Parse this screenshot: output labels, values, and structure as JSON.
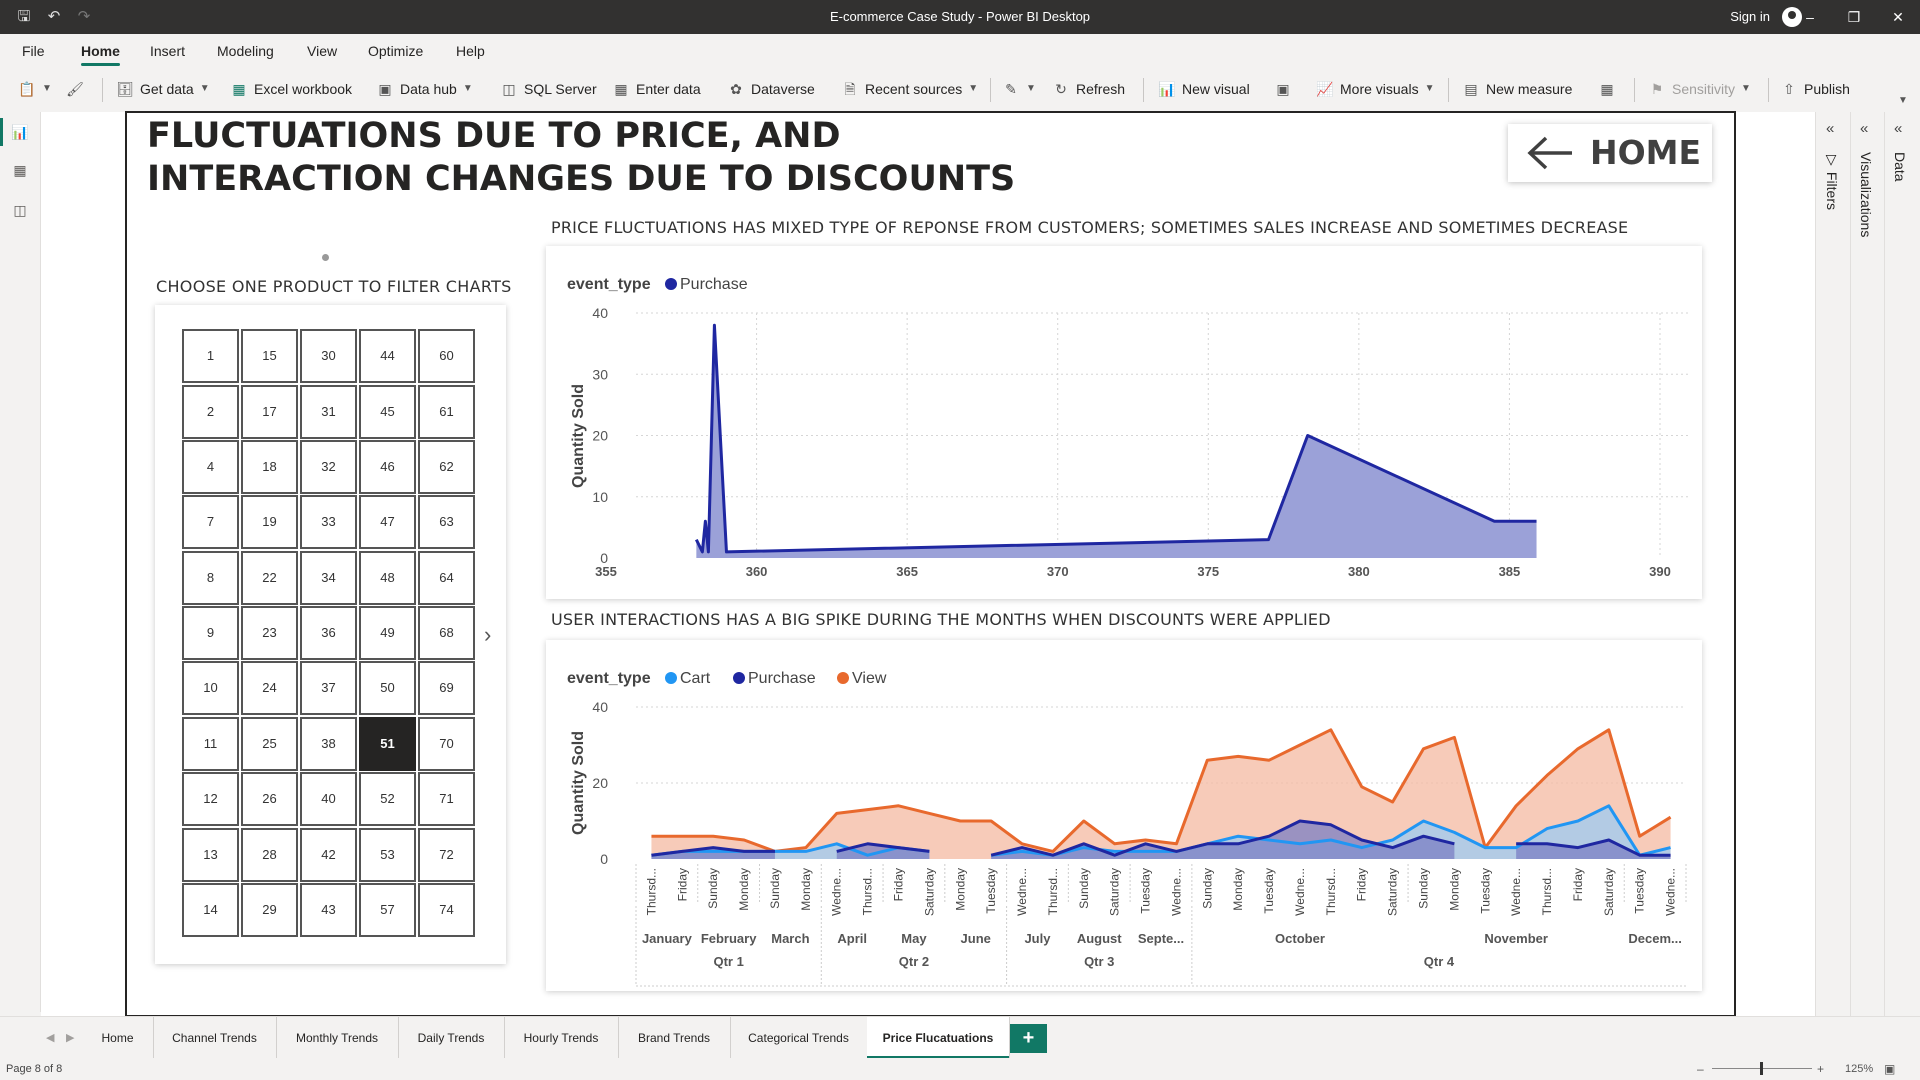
{
  "window": {
    "title": "E-commerce Case Study - Power BI Desktop",
    "sign_in": "Sign in"
  },
  "menu": [
    "File",
    "Home",
    "Insert",
    "Modeling",
    "View",
    "Optimize",
    "Help"
  ],
  "ribbon": {
    "get_data": "Get data",
    "excel_workbook": "Excel workbook",
    "data_hub": "Data hub",
    "sql_server": "SQL Server",
    "enter_data": "Enter data",
    "dataverse": "Dataverse",
    "recent_sources": "Recent sources",
    "refresh": "Refresh",
    "new_visual": "New visual",
    "more_visuals": "More visuals",
    "new_measure": "New measure",
    "sensitivity": "Sensitivity",
    "publish": "Publish"
  },
  "report": {
    "title_line1": "FLUCTUATIONS DUE TO PRICE, AND",
    "title_line2": "INTERACTION CHANGES DUE TO DISCOUNTS",
    "home_button": "HOME"
  },
  "slicer": {
    "title": "CHOOSE ONE PRODUCT TO FILTER CHARTS",
    "columns": [
      [
        "1",
        "2",
        "4",
        "7",
        "8",
        "9",
        "10",
        "11",
        "12",
        "13",
        "14"
      ],
      [
        "15",
        "17",
        "18",
        "19",
        "22",
        "23",
        "24",
        "25",
        "26",
        "28",
        "29"
      ],
      [
        "30",
        "31",
        "32",
        "33",
        "34",
        "36",
        "37",
        "38",
        "40",
        "42",
        "43"
      ],
      [
        "44",
        "45",
        "46",
        "47",
        "48",
        "49",
        "50",
        "51",
        "52",
        "53",
        "57"
      ],
      [
        "60",
        "61",
        "62",
        "63",
        "64",
        "68",
        "69",
        "70",
        "71",
        "72",
        "74"
      ]
    ],
    "selected": "51"
  },
  "chart_data": [
    {
      "type": "area",
      "title": "PRICE FLUCTUATIONS HAS MIXED TYPE OF REPONSE FROM CUSTOMERS; SOMETIMES SALES INCREASE AND SOMETIMES DECREASE",
      "legend_title": "event_type",
      "legend_placement": "top-left",
      "xlabel": "",
      "ylabel": "Quantity Sold",
      "xlim": [
        355,
        390
      ],
      "ylim": [
        0,
        40
      ],
      "xticks": [
        355,
        360,
        365,
        370,
        375,
        380,
        385,
        390
      ],
      "yticks": [
        0,
        10,
        20,
        30,
        40
      ],
      "grid": true,
      "series": [
        {
          "name": "Purchase",
          "color": "#1f27a1",
          "fill": "#9ba1d8",
          "points": [
            [
              358.0,
              3
            ],
            [
              358.2,
              1
            ],
            [
              358.3,
              6
            ],
            [
              358.4,
              1
            ],
            [
              358.6,
              38
            ],
            [
              359.0,
              1
            ],
            [
              377.0,
              3
            ],
            [
              378.3,
              20
            ],
            [
              384.5,
              6
            ],
            [
              385.9,
              6
            ]
          ]
        }
      ]
    },
    {
      "type": "area",
      "title": "USER INTERACTIONS HAS A BIG SPIKE DURING THE MONTHS WHEN DISCOUNTS WERE APPLIED",
      "legend_title": "event_type",
      "legend_placement": "top-left",
      "xlabel": "",
      "ylabel": "Quantity Sold",
      "ylim": [
        0,
        40
      ],
      "yticks": [
        0,
        20,
        40
      ],
      "grid": true,
      "categories": [
        "Thursd...",
        "Friday",
        "Sunday",
        "Monday",
        "Sunday",
        "Monday",
        "Wedne...",
        "Thursd...",
        "Friday",
        "Saturday",
        "Monday",
        "Tuesday",
        "Wedne...",
        "Thursd...",
        "Sunday",
        "Saturday",
        "Tuesday",
        "Wedne...",
        "Sunday",
        "Monday",
        "Tuesday",
        "Wedne...",
        "Thursd...",
        "Friday",
        "Saturday",
        "Sunday",
        "Monday",
        "Tuesday",
        "Wedne...",
        "Thursd...",
        "Friday",
        "Saturday",
        "Tuesday",
        "Wedne..."
      ],
      "months": [
        {
          "label": "January",
          "span": 2
        },
        {
          "label": "February",
          "span": 2
        },
        {
          "label": "March",
          "span": 2
        },
        {
          "label": "April",
          "span": 2
        },
        {
          "label": "May",
          "span": 2
        },
        {
          "label": "June",
          "span": 2
        },
        {
          "label": "July",
          "span": 2
        },
        {
          "label": "August",
          "span": 2
        },
        {
          "label": "Septe...",
          "span": 2
        },
        {
          "label": "October",
          "span": 7
        },
        {
          "label": "November",
          "span": 7
        },
        {
          "label": "Decem...",
          "span": 2
        }
      ],
      "quarters": [
        {
          "label": "Qtr 1",
          "span": 6
        },
        {
          "label": "Qtr 2",
          "span": 6
        },
        {
          "label": "Qtr 3",
          "span": 6
        },
        {
          "label": "Qtr 4",
          "span": 16
        }
      ],
      "series": [
        {
          "name": "Cart",
          "color": "#2196f3",
          "fill": "#9ccbf3",
          "values": [
            1,
            2,
            2,
            2,
            2,
            2,
            4,
            1,
            3,
            2,
            null,
            1,
            2,
            1,
            3,
            2,
            2,
            2,
            4,
            6,
            5,
            4,
            5,
            3,
            5,
            10,
            7,
            3,
            3,
            8,
            10,
            14,
            1,
            3
          ]
        },
        {
          "name": "Purchase",
          "color": "#1f27a1",
          "fill": "#7b7fc4",
          "values": [
            1,
            2,
            3,
            2,
            2,
            null,
            2,
            4,
            3,
            2,
            null,
            1,
            3,
            1,
            4,
            1,
            4,
            2,
            4,
            4,
            6,
            10,
            9,
            5,
            3,
            6,
            4,
            null,
            4,
            4,
            3,
            5,
            1,
            1
          ]
        },
        {
          "name": "View",
          "color": "#e8692d",
          "fill": "#f4b9a1",
          "values": [
            6,
            6,
            6,
            5,
            2,
            3,
            12,
            13,
            14,
            12,
            10,
            10,
            4,
            2,
            10,
            4,
            5,
            4,
            26,
            27,
            26,
            30,
            34,
            19,
            15,
            29,
            32,
            3,
            14,
            22,
            29,
            34,
            6,
            11
          ]
        }
      ]
    }
  ],
  "pages": [
    "Home",
    "Channel Trends",
    "Monthly Trends",
    "Daily Trends",
    "Hourly Trends",
    "Brand Trends",
    "Categorical Trends",
    "Price Flucatuations"
  ],
  "active_page": "Price Flucatuations",
  "panes": {
    "filters": "Filters",
    "visualizations": "Visualizations",
    "data": "Data"
  },
  "status": {
    "page": "Page 8 of 8",
    "zoom": "125%"
  }
}
